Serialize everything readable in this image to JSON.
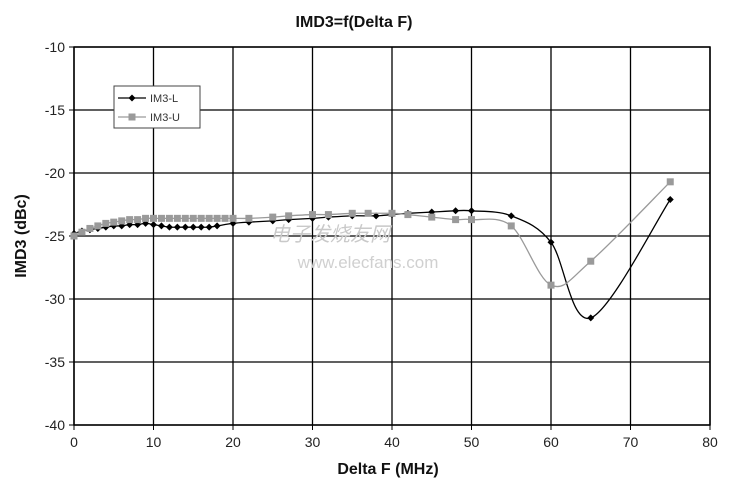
{
  "watermark": {
    "text_cn": "电子发烧友网",
    "text_url": "www.elecfans.com"
  },
  "chart_data": {
    "type": "line",
    "title": "IMD3=f(Delta F)",
    "xlabel": "Delta F (MHz)",
    "ylabel": "IMD3 (dBc)",
    "xlim": [
      0,
      80
    ],
    "ylim": [
      -40,
      -10
    ],
    "x_ticks": [
      0,
      10,
      20,
      30,
      40,
      50,
      60,
      70,
      80
    ],
    "y_ticks": [
      -10,
      -15,
      -20,
      -25,
      -30,
      -35,
      -40
    ],
    "grid": true,
    "legend_position": "top-left",
    "series": [
      {
        "name": "IM3-L",
        "color": "#000000",
        "marker": "diamond",
        "x": [
          0,
          1,
          2,
          3,
          4,
          5,
          6,
          7,
          8,
          9,
          10,
          11,
          12,
          13,
          14,
          15,
          16,
          17,
          18,
          20,
          22,
          25,
          27,
          30,
          32,
          35,
          38,
          40,
          42,
          45,
          48,
          50,
          55,
          60,
          65,
          75
        ],
        "y": [
          -24.8,
          -24.6,
          -24.5,
          -24.4,
          -24.3,
          -24.2,
          -24.2,
          -24.1,
          -24.1,
          -24.0,
          -24.1,
          -24.2,
          -24.3,
          -24.3,
          -24.3,
          -24.3,
          -24.3,
          -24.3,
          -24.2,
          -24.0,
          -23.9,
          -23.8,
          -23.7,
          -23.6,
          -23.5,
          -23.4,
          -23.4,
          -23.3,
          -23.2,
          -23.1,
          -23.0,
          -23.0,
          -23.4,
          -25.5,
          -31.5,
          -22.1
        ]
      },
      {
        "name": "IM3-U",
        "color": "#9a9a9a",
        "marker": "square",
        "x": [
          0,
          1,
          2,
          3,
          4,
          5,
          6,
          7,
          8,
          9,
          10,
          11,
          12,
          13,
          14,
          15,
          16,
          17,
          18,
          19,
          20,
          22,
          25,
          27,
          30,
          32,
          35,
          37,
          40,
          42,
          45,
          48,
          50,
          55,
          60,
          65,
          75
        ],
        "y": [
          -25.0,
          -24.7,
          -24.4,
          -24.2,
          -24.0,
          -23.9,
          -23.8,
          -23.7,
          -23.7,
          -23.6,
          -23.6,
          -23.6,
          -23.6,
          -23.6,
          -23.6,
          -23.6,
          -23.6,
          -23.6,
          -23.6,
          -23.6,
          -23.6,
          -23.6,
          -23.5,
          -23.4,
          -23.3,
          -23.3,
          -23.2,
          -23.2,
          -23.2,
          -23.3,
          -23.5,
          -23.7,
          -23.7,
          -24.2,
          -28.9,
          -27.0,
          -20.7
        ]
      }
    ]
  }
}
